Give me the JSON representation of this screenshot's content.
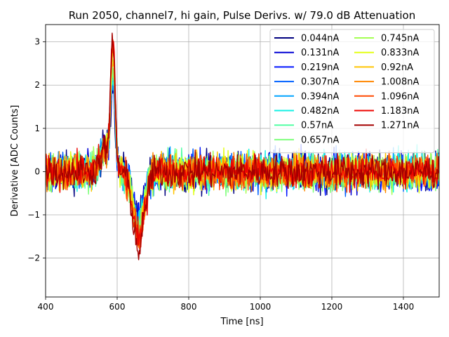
{
  "chart_data": {
    "type": "line",
    "title": "Run 2050, channel7, hi gain, Pulse Derivs. w/ 79.0 dB Attenuation",
    "xlabel": "Time [ns]",
    "ylabel": "Derivative [ADC Counts]",
    "xlim": [
      400,
      1500
    ],
    "ylim": [
      -2.9,
      3.4
    ],
    "xticks": [
      400,
      600,
      800,
      1000,
      1200,
      1400
    ],
    "yticks": [
      -2,
      -1,
      0,
      1,
      2,
      3
    ],
    "grid": true,
    "legend_position": "top-right",
    "legend_columns": 2,
    "pulse": {
      "peak_time": 588,
      "trough_time": 660,
      "noise_amplitude_note": "waveforms fluctuate roughly between -1.3 and 1.3 outside the pulse"
    },
    "series": [
      {
        "name": "0.044nA",
        "color": "#00007f",
        "peak": 2.0,
        "trough": -1.3
      },
      {
        "name": "0.131nA",
        "color": "#0000d4",
        "peak": 2.05,
        "trough": -1.35
      },
      {
        "name": "0.219nA",
        "color": "#0014ff",
        "peak": 2.1,
        "trough": -1.4
      },
      {
        "name": "0.307nA",
        "color": "#0060ff",
        "peak": 2.15,
        "trough": -1.45
      },
      {
        "name": "0.394nA",
        "color": "#00a4ff",
        "peak": 2.2,
        "trough": -1.5
      },
      {
        "name": "0.482nA",
        "color": "#13f0e4",
        "peak": 2.3,
        "trough": -1.55
      },
      {
        "name": "0.57nA",
        "color": "#52ffa4",
        "peak": 2.35,
        "trough": -1.6
      },
      {
        "name": "0.657nA",
        "color": "#7dff7a",
        "peak": 2.4,
        "trough": -1.65
      },
      {
        "name": "0.745nA",
        "color": "#a4ff52",
        "peak": 2.5,
        "trough": -1.7
      },
      {
        "name": "0.833nA",
        "color": "#e4ff13",
        "peak": 2.55,
        "trough": -1.75
      },
      {
        "name": "0.92nA",
        "color": "#ffc400",
        "peak": 2.6,
        "trough": -1.8
      },
      {
        "name": "1.008nA",
        "color": "#ff8600",
        "peak": 2.7,
        "trough": -1.85
      },
      {
        "name": "1.096nA",
        "color": "#ff4800",
        "peak": 2.8,
        "trough": -1.9
      },
      {
        "name": "1.183nA",
        "color": "#ed0400",
        "peak": 3.1,
        "trough": -2.0
      },
      {
        "name": "1.271nA",
        "color": "#a40000",
        "peak": 2.9,
        "trough": -2.25
      }
    ]
  }
}
